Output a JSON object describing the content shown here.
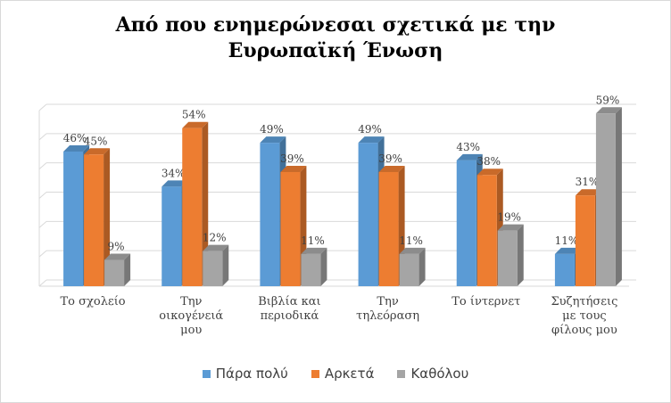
{
  "chart_data": {
    "type": "bar",
    "title_lines": [
      "Από που ενημερώνεσαι σχετικά με την",
      "Ευρωπαϊκή Ένωση"
    ],
    "categories": [
      [
        "Το σχολείο"
      ],
      [
        "Την",
        "οικογένειά",
        "μου"
      ],
      [
        "Βιβλία και",
        "περιοδικά"
      ],
      [
        "Την",
        "τηλεόραση"
      ],
      [
        "Το ίντερνετ"
      ],
      [
        "Συζητήσεις",
        "με τους",
        "φίλους μου"
      ]
    ],
    "series": [
      {
        "name": "Πάρα πολύ",
        "values": [
          46,
          34,
          49,
          49,
          43,
          11
        ],
        "labels": [
          "46%",
          "34%",
          "49%",
          "49%",
          "43%",
          "11%"
        ]
      },
      {
        "name": "Αρκετά",
        "values": [
          45,
          54,
          39,
          39,
          38,
          31
        ],
        "labels": [
          "45%",
          "54%",
          "39%",
          "39%",
          "38%",
          "31%"
        ]
      },
      {
        "name": "Καθόλου",
        "values": [
          9,
          12,
          11,
          11,
          19,
          59
        ],
        "labels": [
          "9%",
          "12%",
          "11%",
          "11%",
          "19%",
          "59%"
        ]
      }
    ],
    "ylim": [
      0,
      60
    ],
    "grid": true,
    "legend": "bottom",
    "colors": [
      "#5b9bd5",
      "#ed7d31",
      "#a5a5a5"
    ]
  }
}
